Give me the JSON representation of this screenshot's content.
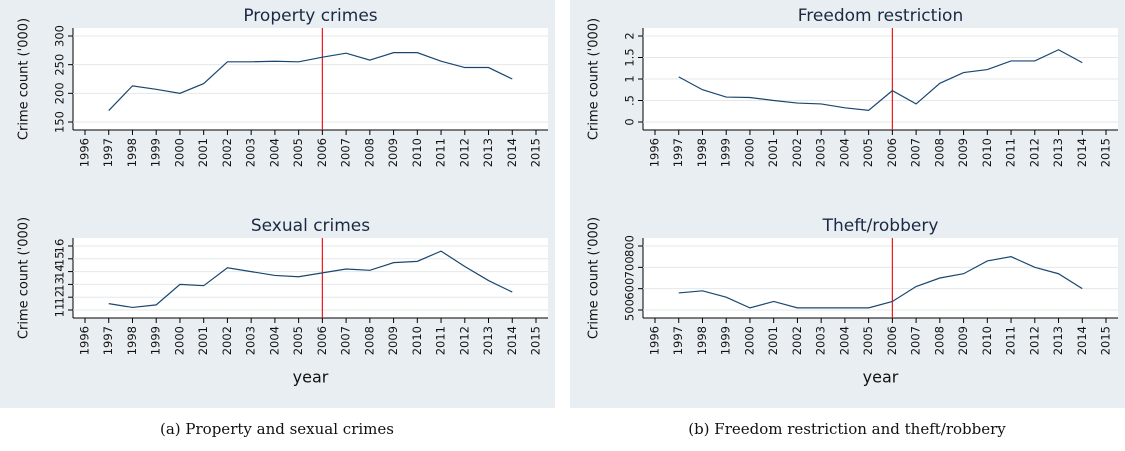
{
  "chart_data": [
    {
      "type": "line",
      "title": "Property crimes",
      "ylabel": "Crime count ('000)",
      "x": [
        1997,
        1998,
        1999,
        2000,
        2001,
        2002,
        2003,
        2004,
        2005,
        2006,
        2007,
        2008,
        2009,
        2010,
        2011,
        2012,
        2013,
        2014
      ],
      "values": [
        170,
        213,
        207,
        200,
        217,
        255,
        255,
        256,
        255,
        263,
        270,
        258,
        271,
        271,
        256,
        245,
        245,
        225
      ],
      "color": "#1a476f",
      "xlim": [
        1996,
        2015
      ],
      "xticks": [
        1996,
        1997,
        1998,
        1999,
        2000,
        2001,
        2002,
        2003,
        2004,
        2005,
        2006,
        2007,
        2008,
        2009,
        2010,
        2011,
        2012,
        2013,
        2014,
        2015
      ],
      "ylim": [
        150,
        300
      ],
      "yticks": [
        150,
        200,
        250,
        300
      ],
      "grid": true,
      "vline": {
        "x": 2006,
        "color": "#e8191b"
      }
    },
    {
      "type": "line",
      "title": "Sexual crimes",
      "ylabel": "Crime count ('000)",
      "xlabel": "year",
      "x": [
        1997,
        1998,
        1999,
        2000,
        2001,
        2002,
        2003,
        2004,
        2005,
        2006,
        2007,
        2008,
        2009,
        2010,
        2011,
        2012,
        2013,
        2014
      ],
      "values": [
        11.5,
        11.2,
        11.4,
        13.0,
        12.9,
        14.3,
        14.0,
        13.7,
        13.6,
        13.9,
        14.2,
        14.1,
        14.7,
        14.8,
        15.6,
        14.4,
        13.3,
        12.4
      ],
      "color": "#1a476f",
      "xlim": [
        1996,
        2015
      ],
      "xticks": [
        1996,
        1997,
        1998,
        1999,
        2000,
        2001,
        2002,
        2003,
        2004,
        2005,
        2006,
        2007,
        2008,
        2009,
        2010,
        2011,
        2012,
        2013,
        2014,
        2015
      ],
      "ylim": [
        11,
        16
      ],
      "yticks": [
        11,
        12,
        13,
        14,
        15,
        16
      ],
      "grid": true,
      "vline": {
        "x": 2006,
        "color": "#e8191b"
      }
    },
    {
      "type": "line",
      "title": "Freedom restriction",
      "ylabel": "Crime count ('000)",
      "x": [
        1997,
        1998,
        1999,
        2000,
        2001,
        2002,
        2003,
        2004,
        2005,
        2006,
        2007,
        2008,
        2009,
        2010,
        2011,
        2012,
        2013,
        2014
      ],
      "values": [
        1.05,
        0.75,
        0.58,
        0.57,
        0.5,
        0.44,
        0.42,
        0.33,
        0.27,
        0.73,
        0.42,
        0.9,
        1.15,
        1.22,
        1.42,
        1.42,
        1.68,
        1.38
      ],
      "color": "#1a476f",
      "xlim": [
        1996,
        2015
      ],
      "xticks": [
        1996,
        1997,
        1998,
        1999,
        2000,
        2001,
        2002,
        2003,
        2004,
        2005,
        2006,
        2007,
        2008,
        2009,
        2010,
        2011,
        2012,
        2013,
        2014,
        2015
      ],
      "ylim": [
        0,
        2
      ],
      "yticks": [
        0,
        {
          "value": 0.5,
          "label": ".5"
        },
        1,
        1.5,
        2
      ],
      "grid": true,
      "vline": {
        "x": 2006,
        "color": "#e8191b"
      }
    },
    {
      "type": "line",
      "title": "Theft/robbery",
      "ylabel": "Crime count ('000)",
      "xlabel": "year",
      "x": [
        1997,
        1998,
        1999,
        2000,
        2001,
        2002,
        2003,
        2004,
        2005,
        2006,
        2007,
        2008,
        2009,
        2010,
        2011,
        2012,
        2013,
        2014
      ],
      "values": [
        580,
        590,
        560,
        510,
        540,
        510,
        510,
        510,
        510,
        540,
        610,
        650,
        670,
        730,
        750,
        700,
        670,
        600
      ],
      "color": "#1a476f",
      "xlim": [
        1996,
        2015
      ],
      "xticks": [
        1996,
        1997,
        1998,
        1999,
        2000,
        2001,
        2002,
        2003,
        2004,
        2005,
        2006,
        2007,
        2008,
        2009,
        2010,
        2011,
        2012,
        2013,
        2014,
        2015
      ],
      "ylim": [
        500,
        800
      ],
      "yticks": [
        500,
        600,
        700,
        800
      ],
      "grid": true,
      "vline": {
        "x": 2006,
        "color": "#e8191b"
      }
    }
  ],
  "captions": [
    "(a) Property and sexual crimes",
    "(b) Freedom restriction and theft/robbery"
  ]
}
